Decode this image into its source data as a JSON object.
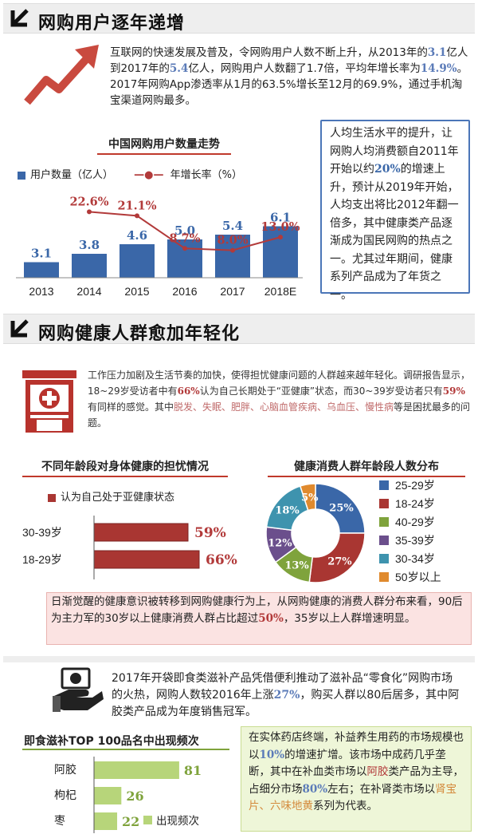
{
  "section1": {
    "title": "网购用户逐年递增",
    "para": {
      "p1": "互联网的快速发展及普及，令网购用户人数不断上升，从2013年的",
      "v1": "3.1",
      "p2": "亿人到2017年的",
      "v2": "5.4",
      "p3": "亿人，网购用户人数翻了1.7倍，平均年增长率为",
      "v3": "14.9%",
      "p4": "。2017年网购App渗透率从1月的63.5%增长至12月的69.9%，通过手机淘宝渠道网购最多。"
    },
    "side_note": {
      "p1": "人均生活水平的提升，让网购人均消费额自2011年开始以约",
      "v1": "20%",
      "p2": "的增速上升，预计从2019年开始，人均支出将比2012年翻一倍多，其中健康类产品逐渐成为国民网购的热点之一。尤其过年期间，健康系列产品成为了年货之一。"
    }
  },
  "chart_data": [
    {
      "type": "bar",
      "title": "中国网购用户数量走势",
      "categories": [
        "2013",
        "2014",
        "2015",
        "2016",
        "2017",
        "2018E"
      ],
      "series": [
        {
          "name": "用户数量（亿人）",
          "values": [
            3.1,
            3.8,
            4.6,
            5.0,
            5.4,
            6.1
          ],
          "labels": [
            "3.1",
            "3.8",
            "4.6",
            "5.0",
            "5.4",
            "6.1"
          ],
          "color": "#3a67a8"
        },
        {
          "name": "年增长率（%）",
          "type": "line",
          "values": [
            null,
            22.6,
            21.1,
            8.7,
            8.0,
            13.0
          ],
          "labels": [
            "",
            "22.6%",
            "21.1%",
            "8.7%",
            "8.0%",
            "13.0%"
          ],
          "color": "#b23a3a"
        }
      ]
    },
    {
      "type": "bar",
      "orientation": "horizontal",
      "title": "不同年龄段对身体健康的担忧情况",
      "categories": [
        "30-39岁",
        "18-29岁"
      ],
      "series": [
        {
          "name": "认为自己处于亚健康状态",
          "values": [
            59,
            66
          ],
          "labels": [
            "59%",
            "66%"
          ],
          "color": "#a93632"
        }
      ]
    },
    {
      "type": "pie",
      "title": "健康消费人群年龄段人数分布",
      "labels": [
        "25-29岁",
        "18-24岁",
        "40-29岁",
        "35-39岁",
        "30-34岁",
        "50岁以上"
      ],
      "values": [
        25,
        27,
        13,
        12,
        18,
        5
      ],
      "colors": [
        "#3a67a8",
        "#a93632",
        "#7fa33c",
        "#6b4f8c",
        "#3e93ae",
        "#e08a2e"
      ]
    },
    {
      "type": "bar",
      "orientation": "horizontal",
      "title": "即食滋补TOP 100品名中出现频次",
      "categories": [
        "阿胶",
        "枸杞",
        "枣"
      ],
      "series": [
        {
          "name": "出现频次",
          "values": [
            81,
            26,
            22
          ],
          "color": "#b7d57a"
        }
      ]
    }
  ],
  "legend1": {
    "bar": "用户数量（亿人）",
    "line": "年增长率（%）"
  },
  "section2": {
    "title": "网购健康人群愈加年轻化",
    "para": {
      "p1": "工作压力加剧及生活节奏的加快，使得担忧健康问题的人群越来越年轻化。调研报告显示，18~29岁受访者中有",
      "v1": "66%",
      "p2": "认为自己长期处于“亚健康”状态，而30~39岁受访者只有",
      "v2": "59%",
      "p3": "有同样的感觉。其中",
      "v3": "脱发、失眠、肥胖、心脑血管疾病、乌血压、慢性病",
      "p4": "等是困扰最多的问题。"
    },
    "pink_note": {
      "p1": "日渐觉醒的健康意识被转移到网购健康行为上，从网购健康的消费人群分布来看，90后为主力军的30岁以上健康消费人群占比超过",
      "v1": "50%",
      "p2": "，35岁以上人群增速明显。"
    }
  },
  "section3": {
    "para": {
      "p1": "2017年开袋即食类滋补产品凭借便利推动了滋补品“零食化”网购市场的火热，网购人数较2016年上涨",
      "v1": "27%",
      "p2": "，购买人群以80后居多，其中阿胶类产品成为年度销售冠军。"
    },
    "green_note": {
      "p1": "在实体药店终端，补益养生用药的市场规模也以",
      "v1": "10%",
      "p2": "的增速扩增。该市场中成药几乎垄断，其中在补血类市场以",
      "v2": "阿胶",
      "p3": "类产品为主导，占细分市场",
      "v3": "80%",
      "p4": "左右；在补肾类市场以",
      "v4": "肾宝片、六味地黄",
      "p5": "系列为代表。"
    }
  },
  "icons": {
    "growth": "rising-arrow-icon",
    "pharmacy": "pharmacy-store-icon",
    "money": "money-hand-icon",
    "section": "corner-arrow-icon"
  }
}
